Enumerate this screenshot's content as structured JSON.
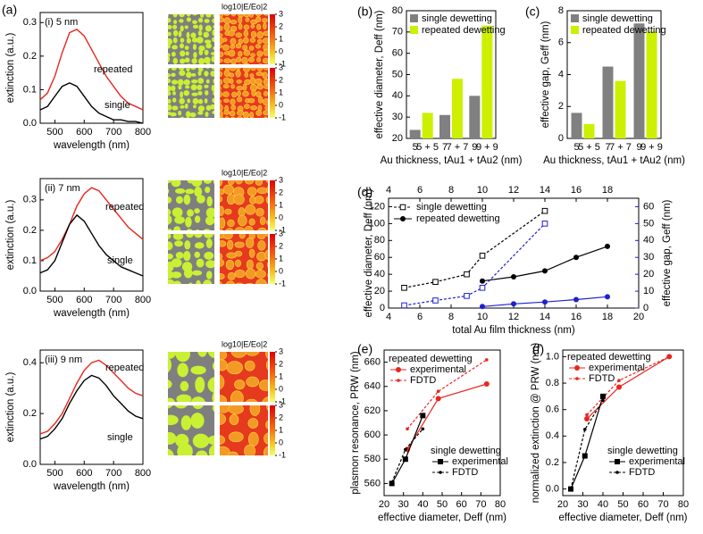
{
  "chart_data": [
    {
      "type": "line",
      "panel": "(a)",
      "subtitle": "(i) 5 nm",
      "xlabel": "wavelength (nm)",
      "ylabel": "extinction (a.u.)",
      "x": [
        450,
        475,
        500,
        525,
        550,
        575,
        600,
        625,
        650,
        675,
        700,
        725,
        750,
        775,
        800
      ],
      "xlim": [
        450,
        800
      ],
      "xticks": [
        500,
        600,
        700,
        800
      ],
      "ylim": [
        0,
        0.33
      ],
      "yticks": [
        {
          "value": 0,
          "label": "0.0"
        },
        0.1,
        0.2,
        0.3
      ],
      "series": [
        {
          "name": "repeated",
          "color": "#e8251f",
          "values": [
            0.07,
            0.09,
            0.14,
            0.21,
            0.27,
            0.28,
            0.26,
            0.22,
            0.18,
            0.14,
            0.11,
            0.08,
            0.06,
            0.05,
            0.04
          ]
        },
        {
          "name": "single",
          "color": "#000000",
          "values": [
            0.04,
            0.05,
            0.08,
            0.11,
            0.12,
            0.11,
            0.08,
            0.05,
            0.03,
            0.02,
            0.01,
            0.01,
            0.005,
            0.005,
            0
          ]
        }
      ],
      "colorbar": {
        "title": "log10|E/Eo|2",
        "lim": [
          -1,
          3
        ],
        "ticks": [
          3,
          2,
          1,
          0,
          -1
        ]
      }
    },
    {
      "type": "line",
      "subtitle": "(ii) 7 nm",
      "xlabel": "wavelength (nm)",
      "ylabel": "extinction (a.u.)",
      "x": [
        450,
        475,
        500,
        525,
        550,
        575,
        600,
        625,
        650,
        675,
        700,
        725,
        750,
        775,
        800
      ],
      "xlim": [
        450,
        800
      ],
      "xticks": [
        500,
        600,
        700,
        800
      ],
      "ylim": [
        0,
        0.37
      ],
      "yticks": [
        {
          "value": 0,
          "label": "0.0"
        },
        0.1,
        0.2,
        0.3
      ],
      "series": [
        {
          "name": "repeated",
          "color": "#e8251f",
          "values": [
            0.1,
            0.11,
            0.13,
            0.17,
            0.22,
            0.28,
            0.32,
            0.34,
            0.33,
            0.3,
            0.27,
            0.24,
            0.21,
            0.19,
            0.17
          ]
        },
        {
          "name": "single",
          "color": "#000000",
          "values": [
            0.06,
            0.07,
            0.1,
            0.16,
            0.22,
            0.25,
            0.23,
            0.19,
            0.15,
            0.12,
            0.1,
            0.08,
            0.07,
            0.06,
            0.05
          ]
        }
      ],
      "colorbar": {
        "title": "log10|E/Eo|2",
        "lim": [
          -1,
          3
        ],
        "ticks": [
          3,
          2,
          1,
          0,
          -1
        ]
      }
    },
    {
      "type": "line",
      "subtitle": "(iii) 9 nm",
      "xlabel": "wavelength (nm)",
      "ylabel": "extinction (a.u.)",
      "x": [
        450,
        475,
        500,
        525,
        550,
        575,
        600,
        625,
        650,
        675,
        700,
        725,
        750,
        775,
        800
      ],
      "xlim": [
        450,
        800
      ],
      "xticks": [
        500,
        600,
        700,
        800
      ],
      "ylim": [
        0,
        0.45
      ],
      "yticks": [
        {
          "value": 0,
          "label": "0.0"
        },
        0.2,
        0.4
      ],
      "series": [
        {
          "name": "repeated",
          "color": "#e8251f",
          "values": [
            0.12,
            0.13,
            0.16,
            0.2,
            0.26,
            0.32,
            0.37,
            0.4,
            0.41,
            0.39,
            0.36,
            0.33,
            0.3,
            0.28,
            0.27
          ]
        },
        {
          "name": "single",
          "color": "#000000",
          "values": [
            0.1,
            0.11,
            0.14,
            0.18,
            0.24,
            0.29,
            0.33,
            0.35,
            0.34,
            0.31,
            0.27,
            0.24,
            0.21,
            0.19,
            0.18
          ]
        }
      ],
      "colorbar": {
        "title": "log10|E/Eo|2",
        "lim": [
          -1,
          3
        ],
        "ticks": [
          3,
          2,
          1,
          0,
          -1
        ]
      }
    },
    {
      "type": "bar",
      "panel": "(b)",
      "ylabel": "effective diameter, Deff (nm)",
      "xlabel": "Au thickness, tAu1 + tAu2 (nm)",
      "ylim": [
        20,
        80
      ],
      "yticks": [
        20,
        30,
        40,
        50,
        60,
        70,
        80
      ],
      "series": [
        {
          "name": "single dewetting",
          "color": "#808080",
          "labels": [
            "5",
            "7",
            "9"
          ],
          "values": [
            24,
            31,
            40
          ]
        },
        {
          "name": "repeated dewetting",
          "color": "#ccf000",
          "labels": [
            "5 + 5",
            "7 + 7",
            "9 + 9"
          ],
          "values": [
            32,
            48,
            73
          ]
        }
      ]
    },
    {
      "type": "bar",
      "panel": "(c)",
      "ylabel": "effective gap, Geff (nm)",
      "xlabel": "Au thickness, tAu1 + tAu2 (nm)",
      "ylim": [
        0,
        8
      ],
      "yticks": [
        0,
        2,
        4,
        6,
        8
      ],
      "series": [
        {
          "name": "single dewetting",
          "color": "#808080",
          "labels": [
            "5",
            "7",
            "9"
          ],
          "values": [
            1.6,
            4.5,
            7.2
          ]
        },
        {
          "name": "repeated dewetting",
          "color": "#ccf000",
          "labels": [
            "5 + 5",
            "7 + 7",
            "9 + 9"
          ],
          "values": [
            0.9,
            3.6,
            6.7
          ]
        }
      ]
    },
    {
      "type": "scatter",
      "panel": "(d)",
      "xlabel": "total Au film thickness (nm)",
      "ylabel": "effective diameter, Deff (nm)",
      "y2label": "effective gap, Geff (nm)",
      "y2color": "#1f1fd0",
      "xlim": [
        4,
        20
      ],
      "xticks": [
        4,
        6,
        8,
        10,
        12,
        14,
        16,
        18,
        20
      ],
      "x2ticks": [
        4,
        6,
        8,
        10,
        12,
        14,
        16,
        18
      ],
      "ylim": [
        0,
        130
      ],
      "yticks": [
        0,
        20,
        40,
        60,
        80,
        100,
        120
      ],
      "y2lim": [
        0,
        65
      ],
      "y2ticks": [
        0,
        10,
        20,
        30,
        40,
        50,
        60
      ],
      "series": [
        {
          "name": "single dewetting",
          "color": "#000000",
          "marker": "open-square",
          "linestyle": "dashed",
          "x": [
            5,
            7,
            9,
            10,
            14
          ],
          "values": [
            24,
            31,
            40,
            62,
            115
          ]
        },
        {
          "name": "repeated dewetting",
          "color": "#000000",
          "marker": "circle",
          "linestyle": "solid",
          "x": [
            10,
            12,
            14,
            16,
            18
          ],
          "values": [
            32,
            37,
            44,
            60,
            73
          ]
        },
        {
          "color": "#1f1fd0",
          "axis": "y2",
          "marker": "open-square",
          "linestyle": "dashed",
          "x": [
            5,
            7,
            9,
            10,
            14
          ],
          "values": [
            1.6,
            4.5,
            7.2,
            12,
            50
          ]
        },
        {
          "color": "#1f1fd0",
          "axis": "y2",
          "marker": "circle",
          "linestyle": "solid",
          "x": [
            10,
            12,
            14,
            16,
            18
          ],
          "values": [
            0.9,
            2.5,
            3.6,
            5,
            6.7
          ]
        }
      ]
    },
    {
      "type": "line",
      "panel": "(e)",
      "xlabel": "effective diameter, Deff (nm)",
      "ylabel": "plasmon resonance, PRW (nm)",
      "xlim": [
        20,
        80
      ],
      "xticks": [
        20,
        30,
        40,
        50,
        60,
        70,
        80
      ],
      "ylim": [
        550,
        670
      ],
      "yticks": [
        560,
        580,
        600,
        620,
        640,
        660
      ],
      "groups": [
        {
          "title": "repeated dewetting",
          "color": "#e8251f",
          "series": [
            {
              "name": "experimental",
              "marker": "circle",
              "linestyle": "solid",
              "x": [
                32,
                48,
                73
              ],
              "values": [
                588,
                630,
                642
              ]
            },
            {
              "name": "FDTD",
              "marker": "dot",
              "linestyle": "dashed",
              "x": [
                32,
                48,
                73
              ],
              "values": [
                605,
                636,
                662
              ]
            }
          ]
        },
        {
          "title": "single dewetting",
          "color": "#000000",
          "series": [
            {
              "name": "experimental",
              "marker": "square",
              "linestyle": "solid",
              "x": [
                24,
                31,
                40
              ],
              "values": [
                560,
                580,
                616
              ]
            },
            {
              "name": "FDTD",
              "marker": "dot",
              "linestyle": "dashed",
              "x": [
                24,
                31,
                40
              ],
              "values": [
                561,
                588,
                605
              ]
            }
          ]
        }
      ]
    },
    {
      "type": "line",
      "panel": "(f)",
      "xlabel": "effective diameter, Deff (nm)",
      "ylabel": "normalized extinction @ PRW (nm)",
      "xlim": [
        20,
        80
      ],
      "xticks": [
        20,
        30,
        40,
        50,
        60,
        70,
        80
      ],
      "ylim": [
        -0.05,
        1.05
      ],
      "yticks": [
        {
          "value": 0,
          "label": "0.0"
        },
        0.2,
        0.4,
        0.6,
        0.8,
        {
          "value": 1,
          "label": "1.0"
        }
      ],
      "groups": [
        {
          "title": "repeated dewetting",
          "color": "#e8251f",
          "series": [
            {
              "name": "experimental",
              "marker": "circle",
              "linestyle": "solid",
              "x": [
                32,
                48,
                73
              ],
              "values": [
                0.53,
                0.77,
                1.0
              ]
            },
            {
              "name": "FDTD",
              "marker": "dot",
              "linestyle": "dashed",
              "x": [
                32,
                48,
                73
              ],
              "values": [
                0.56,
                0.82,
                1.0
              ]
            }
          ]
        },
        {
          "title": "single dewetting",
          "color": "#000000",
          "series": [
            {
              "name": "experimental",
              "marker": "square",
              "linestyle": "solid",
              "x": [
                24,
                31,
                40
              ],
              "values": [
                0,
                0.25,
                0.7
              ]
            },
            {
              "name": "FDTD",
              "marker": "dot",
              "linestyle": "dashed",
              "x": [
                24,
                31,
                40
              ],
              "values": [
                0,
                0.45,
                0.67
              ]
            }
          ]
        }
      ]
    }
  ]
}
